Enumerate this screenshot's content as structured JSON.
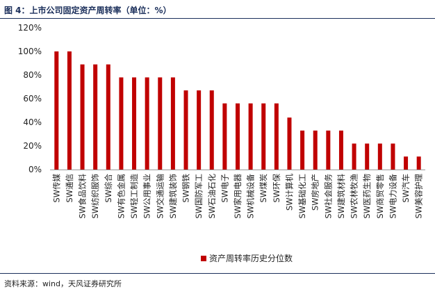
{
  "title": "图 4：上市公司固定资产周转率（单位：%）",
  "source": "资料来源：wind，天风证券研究所",
  "chart_data": {
    "type": "bar",
    "categories": [
      "SW传媒",
      "SW通信",
      "SW食品饮料",
      "SW纺织服饰",
      "SW综合",
      "SW有色金属",
      "SW轻工制造",
      "SW公用事业",
      "SW交通运输",
      "SW建筑装饰",
      "SW钢铁",
      "SW国防军工",
      "SW石油石化",
      "SW电子",
      "SW家用电器",
      "SW机械设备",
      "SW煤炭",
      "SW环保",
      "SW计算机",
      "SW基础化工",
      "SW房地产",
      "SW社会服务",
      "SW建筑材料",
      "SW农林牧渔",
      "SW医药生物",
      "SW商贸零售",
      "SW电力设备",
      "SW汽车",
      "SW美容护理"
    ],
    "series": [
      {
        "name": "资产周转率历史分位数",
        "values": [
          100,
          100,
          89,
          89,
          89,
          78,
          78,
          78,
          78,
          78,
          67,
          67,
          67,
          56,
          56,
          56,
          56,
          56,
          44,
          33,
          33,
          33,
          33,
          22,
          22,
          22,
          22,
          11,
          11
        ]
      }
    ],
    "y_tick_labels": [
      "0%",
      "20%",
      "40%",
      "60%",
      "80%",
      "100%",
      "120%"
    ],
    "ylim": [
      0,
      120
    ],
    "bar_color": "#c00000",
    "legend_position": "bottom-center",
    "grid": false
  }
}
